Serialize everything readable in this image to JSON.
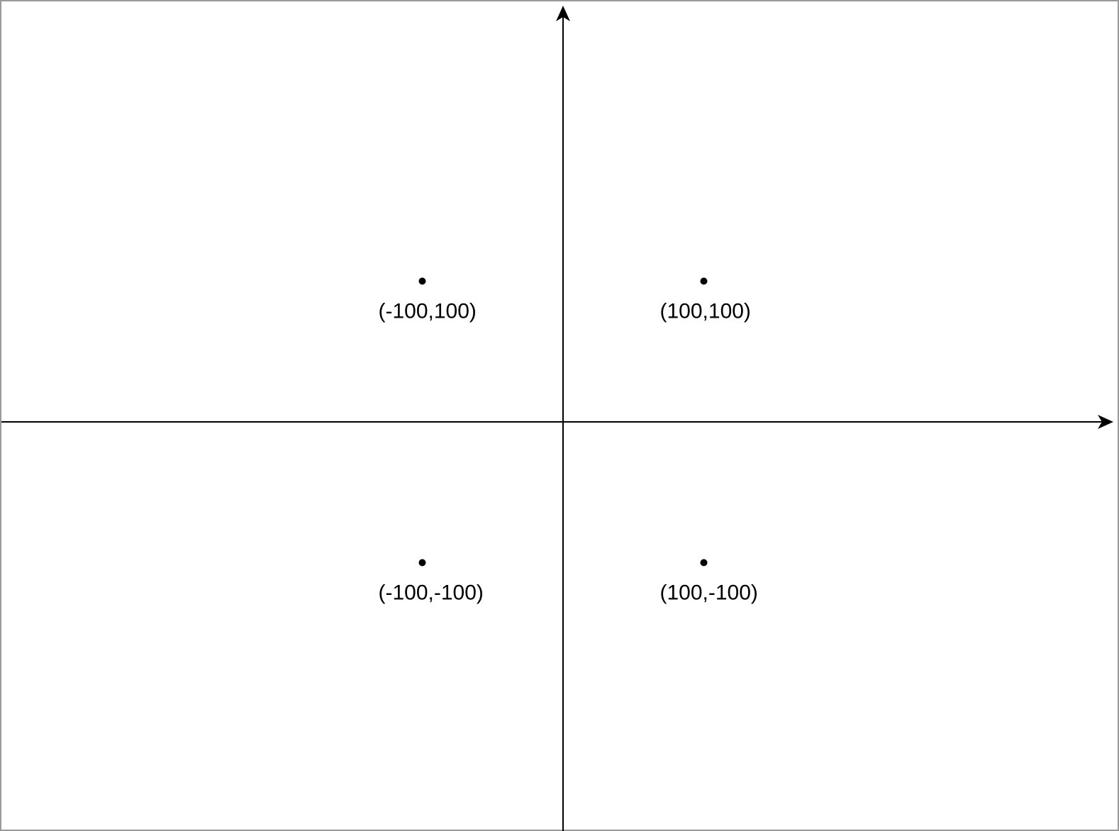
{
  "diagram": {
    "type": "coordinate-plane",
    "x_axis": {
      "arrow": "right"
    },
    "y_axis": {
      "arrow": "up"
    },
    "points": [
      {
        "x": -100,
        "y": 100,
        "label": "(-100,100)"
      },
      {
        "x": 100,
        "y": 100,
        "label": "(100,100)"
      },
      {
        "x": -100,
        "y": -100,
        "label": "(-100,-100)"
      },
      {
        "x": 100,
        "y": -100,
        "label": "(100,-100)"
      }
    ]
  },
  "colors": {
    "axis": "#000000",
    "point": "#000000",
    "frame": "#9a9a9a",
    "background": "#ffffff"
  }
}
